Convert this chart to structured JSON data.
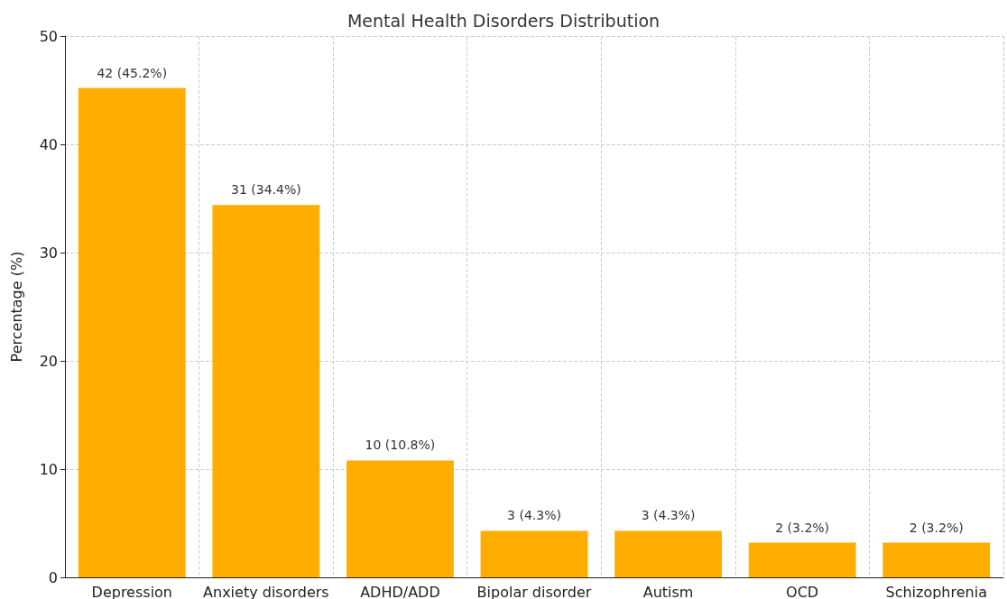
{
  "chart_data": {
    "type": "bar",
    "title": "Mental Health Disorders Distribution",
    "ylabel": "Percentage (%)",
    "categories": [
      "Depression",
      "Anxiety disorders",
      "ADHD/ADD",
      "Bipolar disorder",
      "Autism",
      "OCD",
      "Schizophrenia"
    ],
    "values": [
      45.2,
      34.4,
      10.8,
      4.3,
      4.3,
      3.2,
      3.2
    ],
    "value_labels": [
      "42 (45.2%)",
      "31 (34.4%)",
      "10 (10.8%)",
      "3 (4.3%)",
      "3 (4.3%)",
      "2 (3.2%)",
      "2 (3.2%)"
    ],
    "color": "#ffae00",
    "ylim": [
      0,
      50
    ],
    "yticks": [
      0,
      10,
      20,
      30,
      40,
      50
    ],
    "grid": true
  }
}
